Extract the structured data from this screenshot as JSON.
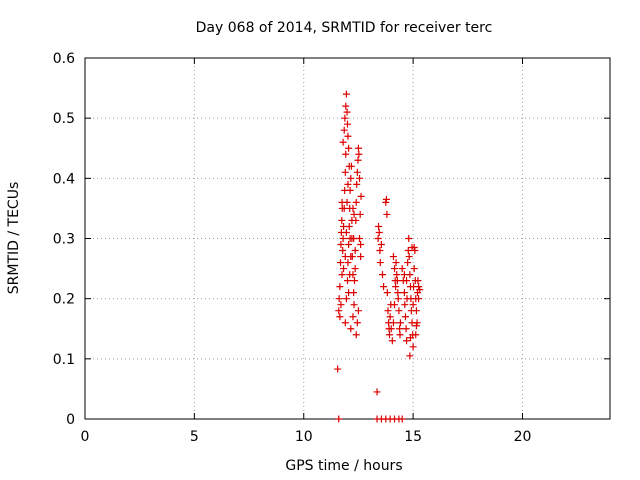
{
  "chart_data": {
    "type": "scatter",
    "title": "Day 068 of 2014, SRMTID for receiver terc",
    "xlabel": "GPS time / hours",
    "ylabel": "SRMTID / TECUs",
    "xlim": [
      0,
      24
    ],
    "ylim": [
      0,
      0.6
    ],
    "x_ticks": [
      0,
      5,
      10,
      15,
      20
    ],
    "x_tick_labels": [
      "0",
      "5",
      "10",
      "15",
      "20"
    ],
    "y_ticks": [
      0,
      0.1,
      0.2,
      0.3,
      0.4,
      0.5,
      0.6
    ],
    "y_tick_labels": [
      "0",
      "0.1",
      "0.2",
      "0.3",
      "0.4",
      "0.5",
      "0.6"
    ],
    "grid": true,
    "marker": "plus",
    "color": "#dd0000",
    "series": [
      {
        "name": "terc",
        "points": [
          [
            11.55,
            0.083
          ],
          [
            11.6,
            0.0
          ],
          [
            11.6,
            0.18
          ],
          [
            11.62,
            0.2
          ],
          [
            11.65,
            0.22
          ],
          [
            11.68,
            0.26
          ],
          [
            11.7,
            0.29
          ],
          [
            11.72,
            0.31
          ],
          [
            11.74,
            0.33
          ],
          [
            11.76,
            0.35
          ],
          [
            11.65,
            0.17
          ],
          [
            11.7,
            0.19
          ],
          [
            11.75,
            0.24
          ],
          [
            11.78,
            0.28
          ],
          [
            11.8,
            0.3
          ],
          [
            11.82,
            0.32
          ],
          [
            11.85,
            0.35
          ],
          [
            11.87,
            0.38
          ],
          [
            11.9,
            0.41
          ],
          [
            11.92,
            0.44
          ],
          [
            11.8,
            0.46
          ],
          [
            11.85,
            0.48
          ],
          [
            11.88,
            0.5
          ],
          [
            11.92,
            0.52
          ],
          [
            11.95,
            0.54
          ],
          [
            11.98,
            0.51
          ],
          [
            12.0,
            0.49
          ],
          [
            12.02,
            0.47
          ],
          [
            12.05,
            0.45
          ],
          [
            12.08,
            0.42
          ],
          [
            11.9,
            0.16
          ],
          [
            11.95,
            0.2
          ],
          [
            12.0,
            0.23
          ],
          [
            12.02,
            0.26
          ],
          [
            12.05,
            0.29
          ],
          [
            12.08,
            0.32
          ],
          [
            12.1,
            0.35
          ],
          [
            12.12,
            0.38
          ],
          [
            12.15,
            0.4
          ],
          [
            12.18,
            0.42
          ],
          [
            12.2,
            0.3
          ],
          [
            12.22,
            0.27
          ],
          [
            12.25,
            0.24
          ],
          [
            12.28,
            0.21
          ],
          [
            12.3,
            0.19
          ],
          [
            12.32,
            0.23
          ],
          [
            12.35,
            0.28
          ],
          [
            12.38,
            0.33
          ],
          [
            12.4,
            0.36
          ],
          [
            12.42,
            0.39
          ],
          [
            12.45,
            0.41
          ],
          [
            12.48,
            0.43
          ],
          [
            12.5,
            0.45
          ],
          [
            12.52,
            0.44
          ],
          [
            12.55,
            0.4
          ],
          [
            12.4,
            0.14
          ],
          [
            12.45,
            0.16
          ],
          [
            12.5,
            0.18
          ],
          [
            12.3,
            0.34
          ],
          [
            12.28,
            0.3
          ],
          [
            12.1,
            0.24
          ],
          [
            12.15,
            0.27
          ],
          [
            12.2,
            0.33
          ],
          [
            12.25,
            0.35
          ],
          [
            11.98,
            0.36
          ],
          [
            12.02,
            0.39
          ],
          [
            11.82,
            0.25
          ],
          [
            11.9,
            0.27
          ],
          [
            12.35,
            0.25
          ],
          [
            12.55,
            0.3
          ],
          [
            12.58,
            0.34
          ],
          [
            12.62,
            0.37
          ],
          [
            12.6,
            0.29
          ],
          [
            12.05,
            0.21
          ],
          [
            12.15,
            0.15
          ],
          [
            12.25,
            0.17
          ],
          [
            12.6,
            0.27
          ],
          [
            11.75,
            0.36
          ],
          [
            11.95,
            0.31
          ],
          [
            12.12,
            0.3
          ],
          [
            13.35,
            0.045
          ],
          [
            13.35,
            0.0
          ],
          [
            13.55,
            0.0
          ],
          [
            13.75,
            0.0
          ],
          [
            13.95,
            0.0
          ],
          [
            14.15,
            0.0
          ],
          [
            14.35,
            0.0
          ],
          [
            14.5,
            0.0
          ],
          [
            13.4,
            0.3
          ],
          [
            13.42,
            0.32
          ],
          [
            13.45,
            0.31
          ],
          [
            13.48,
            0.28
          ],
          [
            13.5,
            0.26
          ],
          [
            13.55,
            0.29
          ],
          [
            13.6,
            0.24
          ],
          [
            13.65,
            0.22
          ],
          [
            13.75,
            0.36
          ],
          [
            13.78,
            0.365
          ],
          [
            13.8,
            0.34
          ],
          [
            13.82,
            0.21
          ],
          [
            13.85,
            0.18
          ],
          [
            13.88,
            0.16
          ],
          [
            13.9,
            0.15
          ],
          [
            13.92,
            0.14
          ],
          [
            13.95,
            0.17
          ],
          [
            13.98,
            0.19
          ],
          [
            14.0,
            0.15
          ],
          [
            14.05,
            0.13
          ],
          [
            14.1,
            0.16
          ],
          [
            14.15,
            0.19
          ],
          [
            14.2,
            0.22
          ],
          [
            14.25,
            0.24
          ],
          [
            14.28,
            0.23
          ],
          [
            14.3,
            0.21
          ],
          [
            14.32,
            0.2
          ],
          [
            14.35,
            0.18
          ],
          [
            14.1,
            0.27
          ],
          [
            14.15,
            0.25
          ],
          [
            14.18,
            0.23
          ],
          [
            14.22,
            0.26
          ],
          [
            14.38,
            0.15
          ],
          [
            14.4,
            0.14
          ],
          [
            14.42,
            0.16
          ],
          [
            14.5,
            0.25
          ],
          [
            14.55,
            0.23
          ],
          [
            14.6,
            0.21
          ],
          [
            14.62,
            0.19
          ],
          [
            14.65,
            0.17
          ],
          [
            14.68,
            0.15
          ],
          [
            14.7,
            0.13
          ],
          [
            14.72,
            0.2
          ],
          [
            14.75,
            0.26
          ],
          [
            14.78,
            0.28
          ],
          [
            14.8,
            0.3
          ],
          [
            14.82,
            0.27
          ],
          [
            14.85,
            0.24
          ],
          [
            14.88,
            0.22
          ],
          [
            14.9,
            0.2
          ],
          [
            14.92,
            0.18
          ],
          [
            14.95,
            0.16
          ],
          [
            14.98,
            0.14
          ],
          [
            15.0,
            0.12
          ],
          [
            14.85,
            0.105
          ],
          [
            15.02,
            0.22
          ],
          [
            15.05,
            0.25
          ],
          [
            15.08,
            0.28
          ],
          [
            15.1,
            0.23
          ],
          [
            15.12,
            0.2
          ],
          [
            15.15,
            0.18
          ],
          [
            15.18,
            0.16
          ],
          [
            15.2,
            0.21
          ],
          [
            15.22,
            0.23
          ],
          [
            15.25,
            0.22
          ],
          [
            14.95,
            0.285
          ],
          [
            15.05,
            0.285
          ],
          [
            14.88,
            0.135
          ],
          [
            15.15,
            0.155
          ],
          [
            15.25,
            0.2
          ],
          [
            15.3,
            0.215
          ],
          [
            14.6,
            0.24
          ],
          [
            14.7,
            0.23
          ],
          [
            15.0,
            0.19
          ],
          [
            15.12,
            0.14
          ]
        ]
      }
    ]
  }
}
